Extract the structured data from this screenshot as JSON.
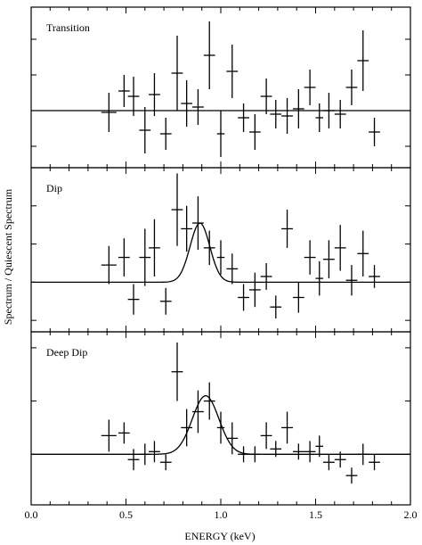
{
  "chart_data": {
    "type": "scatter",
    "xlabel": "ENERGY (keV)",
    "ylabel": "Spectrum / Quiescent Spectrum",
    "xlim": [
      0.0,
      2.0
    ],
    "xticks": [
      {
        "value": 0.0,
        "label": "0.0"
      },
      {
        "value": 0.5,
        "label": "0.5"
      },
      {
        "value": 1.0,
        "label": "1.0"
      },
      {
        "value": 1.5,
        "label": "1.5"
      },
      {
        "value": 2.0,
        "label": "2.0"
      }
    ],
    "panels": [
      {
        "title": "Transition",
        "ylim": [
          -1.6,
          2.9
        ],
        "points": [
          {
            "x": 0.41,
            "y": -0.05,
            "xerr": 0.04,
            "yerr": 0.55
          },
          {
            "x": 0.49,
            "y": 0.55,
            "xerr": 0.03,
            "yerr": 0.45
          },
          {
            "x": 0.54,
            "y": 0.4,
            "xerr": 0.03,
            "yerr": 0.55
          },
          {
            "x": 0.6,
            "y": -0.55,
            "xerr": 0.03,
            "yerr": 0.65
          },
          {
            "x": 0.65,
            "y": 0.45,
            "xerr": 0.03,
            "yerr": 0.6
          },
          {
            "x": 0.71,
            "y": -0.65,
            "xerr": 0.03,
            "yerr": 0.45
          },
          {
            "x": 0.77,
            "y": 1.05,
            "xerr": 0.03,
            "yerr": 1.05
          },
          {
            "x": 0.82,
            "y": 0.2,
            "xerr": 0.03,
            "yerr": 0.65
          },
          {
            "x": 0.88,
            "y": 0.1,
            "xerr": 0.03,
            "yerr": 0.5
          },
          {
            "x": 0.94,
            "y": 1.55,
            "xerr": 0.03,
            "yerr": 0.95
          },
          {
            "x": 1.0,
            "y": -0.65,
            "xerr": 0.02,
            "yerr": 0.65
          },
          {
            "x": 1.06,
            "y": 1.1,
            "xerr": 0.03,
            "yerr": 0.75
          },
          {
            "x": 1.12,
            "y": -0.2,
            "xerr": 0.03,
            "yerr": 0.4
          },
          {
            "x": 1.18,
            "y": -0.6,
            "xerr": 0.03,
            "yerr": 0.5
          },
          {
            "x": 1.24,
            "y": 0.4,
            "xerr": 0.03,
            "yerr": 0.5
          },
          {
            "x": 1.29,
            "y": -0.1,
            "xerr": 0.03,
            "yerr": 0.4
          },
          {
            "x": 1.35,
            "y": -0.15,
            "xerr": 0.03,
            "yerr": 0.5
          },
          {
            "x": 1.41,
            "y": 0.05,
            "xerr": 0.03,
            "yerr": 0.55
          },
          {
            "x": 1.47,
            "y": 0.65,
            "xerr": 0.03,
            "yerr": 0.5
          },
          {
            "x": 1.52,
            "y": -0.2,
            "xerr": 0.02,
            "yerr": 0.4
          },
          {
            "x": 1.57,
            "y": 0.0,
            "xerr": 0.03,
            "yerr": 0.5
          },
          {
            "x": 1.63,
            "y": -0.1,
            "xerr": 0.03,
            "yerr": 0.4
          },
          {
            "x": 1.69,
            "y": 0.65,
            "xerr": 0.03,
            "yerr": 0.5
          },
          {
            "x": 1.75,
            "y": 1.4,
            "xerr": 0.03,
            "yerr": 0.85
          },
          {
            "x": 1.81,
            "y": -0.6,
            "xerr": 0.03,
            "yerr": 0.4
          }
        ],
        "model": null
      },
      {
        "title": "Dip",
        "ylim": [
          -1.3,
          3.0
        ],
        "points": [
          {
            "x": 0.41,
            "y": 0.45,
            "xerr": 0.04,
            "yerr": 0.5
          },
          {
            "x": 0.49,
            "y": 0.65,
            "xerr": 0.03,
            "yerr": 0.5
          },
          {
            "x": 0.54,
            "y": -0.45,
            "xerr": 0.03,
            "yerr": 0.4
          },
          {
            "x": 0.6,
            "y": 0.65,
            "xerr": 0.03,
            "yerr": 0.75
          },
          {
            "x": 0.65,
            "y": 0.9,
            "xerr": 0.03,
            "yerr": 0.75
          },
          {
            "x": 0.71,
            "y": -0.5,
            "xerr": 0.03,
            "yerr": 0.35
          },
          {
            "x": 0.77,
            "y": 1.9,
            "xerr": 0.03,
            "yerr": 0.95
          },
          {
            "x": 0.82,
            "y": 1.4,
            "xerr": 0.03,
            "yerr": 0.6
          },
          {
            "x": 0.88,
            "y": 1.55,
            "xerr": 0.03,
            "yerr": 0.7
          },
          {
            "x": 0.94,
            "y": 0.9,
            "xerr": 0.03,
            "yerr": 0.45
          },
          {
            "x": 1.0,
            "y": 0.65,
            "xerr": 0.02,
            "yerr": 0.45
          },
          {
            "x": 1.06,
            "y": 0.35,
            "xerr": 0.03,
            "yerr": 0.4
          },
          {
            "x": 1.12,
            "y": -0.4,
            "xerr": 0.03,
            "yerr": 0.35
          },
          {
            "x": 1.18,
            "y": -0.2,
            "xerr": 0.03,
            "yerr": 0.45
          },
          {
            "x": 1.24,
            "y": 0.15,
            "xerr": 0.03,
            "yerr": 0.35
          },
          {
            "x": 1.29,
            "y": -0.65,
            "xerr": 0.03,
            "yerr": 0.3
          },
          {
            "x": 1.35,
            "y": 1.4,
            "xerr": 0.03,
            "yerr": 0.5
          },
          {
            "x": 1.41,
            "y": -0.4,
            "xerr": 0.03,
            "yerr": 0.4
          },
          {
            "x": 1.47,
            "y": 0.65,
            "xerr": 0.03,
            "yerr": 0.45
          },
          {
            "x": 1.52,
            "y": 0.1,
            "xerr": 0.02,
            "yerr": 0.45
          },
          {
            "x": 1.57,
            "y": 0.6,
            "xerr": 0.03,
            "yerr": 0.5
          },
          {
            "x": 1.63,
            "y": 0.9,
            "xerr": 0.03,
            "yerr": 0.6
          },
          {
            "x": 1.69,
            "y": 0.05,
            "xerr": 0.03,
            "yerr": 0.4
          },
          {
            "x": 1.75,
            "y": 0.75,
            "xerr": 0.03,
            "yerr": 0.6
          },
          {
            "x": 1.81,
            "y": 0.15,
            "xerr": 0.03,
            "yerr": 0.3
          }
        ],
        "model": {
          "baseline": 0.0,
          "amplitude": 1.55,
          "center": 0.89,
          "sigma": 0.052
        }
      },
      {
        "title": "Deep Dip",
        "ylim": [
          -0.95,
          2.3
        ],
        "points": [
          {
            "x": 0.41,
            "y": 0.35,
            "xerr": 0.04,
            "yerr": 0.3
          },
          {
            "x": 0.49,
            "y": 0.4,
            "xerr": 0.03,
            "yerr": 0.2
          },
          {
            "x": 0.54,
            "y": -0.1,
            "xerr": 0.03,
            "yerr": 0.2
          },
          {
            "x": 0.6,
            "y": 0.0,
            "xerr": 0.03,
            "yerr": 0.2
          },
          {
            "x": 0.65,
            "y": 0.05,
            "xerr": 0.03,
            "yerr": 0.2
          },
          {
            "x": 0.71,
            "y": -0.15,
            "xerr": 0.03,
            "yerr": 0.15
          },
          {
            "x": 0.77,
            "y": 1.55,
            "xerr": 0.03,
            "yerr": 0.55
          },
          {
            "x": 0.82,
            "y": 0.5,
            "xerr": 0.03,
            "yerr": 0.35
          },
          {
            "x": 0.88,
            "y": 0.8,
            "xerr": 0.03,
            "yerr": 0.4
          },
          {
            "x": 0.94,
            "y": 1.0,
            "xerr": 0.03,
            "yerr": 0.35
          },
          {
            "x": 1.0,
            "y": 0.5,
            "xerr": 0.02,
            "yerr": 0.3
          },
          {
            "x": 1.06,
            "y": 0.3,
            "xerr": 0.03,
            "yerr": 0.3
          },
          {
            "x": 1.12,
            "y": 0.0,
            "xerr": 0.03,
            "yerr": 0.15
          },
          {
            "x": 1.18,
            "y": 0.0,
            "xerr": 0.03,
            "yerr": 0.15
          },
          {
            "x": 1.24,
            "y": 0.35,
            "xerr": 0.03,
            "yerr": 0.25
          },
          {
            "x": 1.29,
            "y": 0.1,
            "xerr": 0.03,
            "yerr": 0.15
          },
          {
            "x": 1.35,
            "y": 0.5,
            "xerr": 0.03,
            "yerr": 0.3
          },
          {
            "x": 1.41,
            "y": 0.05,
            "xerr": 0.03,
            "yerr": 0.15
          },
          {
            "x": 1.47,
            "y": 0.05,
            "xerr": 0.03,
            "yerr": 0.2
          },
          {
            "x": 1.52,
            "y": 0.15,
            "xerr": 0.02,
            "yerr": 0.2
          },
          {
            "x": 1.57,
            "y": -0.15,
            "xerr": 0.03,
            "yerr": 0.15
          },
          {
            "x": 1.63,
            "y": -0.1,
            "xerr": 0.03,
            "yerr": 0.15
          },
          {
            "x": 1.69,
            "y": -0.4,
            "xerr": 0.03,
            "yerr": 0.15
          },
          {
            "x": 1.75,
            "y": 0.0,
            "xerr": 0.03,
            "yerr": 0.2
          },
          {
            "x": 1.81,
            "y": -0.15,
            "xerr": 0.03,
            "yerr": 0.15
          }
        ],
        "model": {
          "baseline": 0.0,
          "amplitude": 1.1,
          "center": 0.92,
          "sigma": 0.07
        }
      }
    ]
  }
}
